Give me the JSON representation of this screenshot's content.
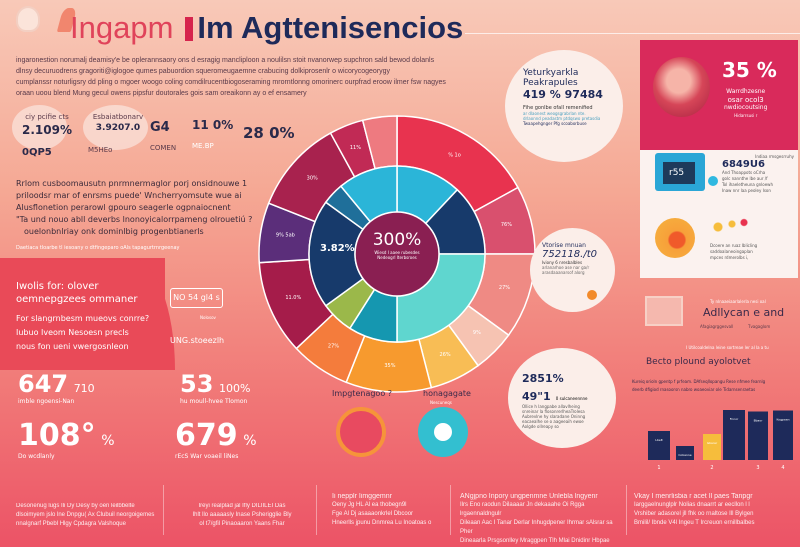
{
  "header": {
    "title_light": "Ingapm",
    "title_bold": "Im Agttenisencios"
  },
  "intro": {
    "lines": [
      "ingaronestion norumalj deamisy'e be oplerannsaory ons d esragig mancliploon a noulilsn stoit nvanorwep supchron sald bewod dolanls",
      "dlnsy decuruodrens gragoriti@iglogoe qumes pabuordion squeromeugaemne crabucing dolkiprosenlr o wicorycogeorygy",
      "cumplanssr noturligsry dd pling o mgoer woogo coling comdilrucentbiogoseraming mrorntlonng omorinerc ourpfrad eroow ilmer fsw nagyes",
      "oraan uoou blend Mung gecul owens pipsfur doutorales gois sam oreaikonn ay o ef ensamery"
    ]
  },
  "stats_top": [
    {
      "caption": "ciy pcifie cts",
      "value": "2.109%",
      "sub": "0QP5"
    },
    {
      "caption": "Esbaiatbonarv",
      "value": "3.9207.0",
      "sub": "M5HEo"
    },
    {
      "caption": "",
      "value": "G4",
      "sub": "COMEN"
    },
    {
      "caption": "",
      "value": "11 0%",
      "sub": "ME.BP"
    },
    {
      "caption": "",
      "value": "28 0%",
      "sub": ""
    }
  ],
  "paragraph": {
    "lines": [
      "Rrlom cusboomausutn pnrmnermaglor porj onsidnouwe 1",
      "priloodsr mar of enrsms puede' Wncherryomsute wue ai",
      "Alusflonetion perarowl gpouro seagerle ogpnaiocnent",
      "\"Ta und nouo abll deverbs lnonoyicalorrpameng olrouetiú ?",
      "ouelonbnlriay onk dominlbig progenbtianerls"
    ],
    "footnote": "Daetiaca tloarbe tl iesoany o dtfingeparo oAls tapagurtrnrgeenay"
  },
  "band": {
    "title1": "Iwolis for: olover",
    "title2": "oemnepgzees ommaner",
    "body": [
      "For slangrnbesm mueovs conrre?",
      "Iubuo Iveom Nesoesn precls",
      "nous fon ueni vwergosnleon"
    ],
    "box": "NO 54 gl4 s",
    "box_caption": "Nolosov",
    "label": "UNG.stoeezlh"
  },
  "big_stats": [
    {
      "value": "647",
      "unit": "710",
      "caption": "imble ngoensi-Nan"
    },
    {
      "value": "53",
      "unit": "100%",
      "caption": "hu moull-hvee Tlomon"
    },
    {
      "value": "108°",
      "unit": "%",
      "caption": "Do wcdlanly"
    },
    {
      "value": "679",
      "unit": "%",
      "caption": "rEcS War voaeil liNes"
    }
  ],
  "donut": {
    "center_value": "300%",
    "center_text": [
      "Wiesd I aaee rubesdes",
      "Nedeogrl Iterbsroes"
    ],
    "left_label": "3.82%",
    "outer": [
      {
        "value": 17,
        "color": "#e8334f",
        "label": "% 1o"
      },
      {
        "value": 8,
        "color": "#d9506e",
        "label": "76%"
      },
      {
        "value": 10,
        "color": "#ef8a84",
        "label": "27%"
      },
      {
        "value": 5,
        "color": "#f6c3b2",
        "label": "9%"
      },
      {
        "value": 6,
        "color": "#f8bd55",
        "label": "26%"
      },
      {
        "value": 10,
        "color": "#f79a2e",
        "label": "35%"
      },
      {
        "value": 7,
        "color": "#f47c3c",
        "label": "27%"
      },
      {
        "value": 11,
        "color": "#a51c4a",
        "label": "11.0%"
      },
      {
        "value": 7,
        "color": "#5b2e7a",
        "label": "9% 5ab"
      },
      {
        "value": 11,
        "color": "#a8224e",
        "label": "30%"
      },
      {
        "value": 4,
        "color": "#c12a55",
        "label": "11%"
      },
      {
        "value": 4,
        "color": "#ee7a80",
        "label": ""
      }
    ],
    "inner": [
      {
        "value": 12,
        "color": "#2bb5d8"
      },
      {
        "value": 13,
        "color": "#173a6b"
      },
      {
        "value": 25,
        "color": "#5fd6cf"
      },
      {
        "value": 9,
        "color": "#1597b0"
      },
      {
        "value": 6,
        "color": "#9bb84a"
      },
      {
        "value": 20,
        "color": "#173a6b"
      },
      {
        "value": 4,
        "color": "#1f6f9a"
      },
      {
        "value": 11,
        "color": "#2bb5d8"
      }
    ],
    "core_color": "#8a1f52"
  },
  "below_donut": {
    "left_label": "Impgtenagoo ?",
    "right_label": "honagagate",
    "right_sub": "Nescuneqs"
  },
  "bubble1": {
    "line1": "Yeturkyarkla",
    "line2": "Peakrapules",
    "value": "419 % 97484",
    "sub": "Fihe gonlbe ofall remenified",
    "lines": [
      "ar dlaonest weogsgrabrlan nte.",
      "drlaonnd peadastm ptdqswo pretasdia",
      "Twaapehgnger Pfg scoaborbuse"
    ]
  },
  "bubble2": {
    "line1": "Vtorise mnuan",
    "value": "752118./t0",
    "sub": "Iviony 6 nresbalbles",
    "lines": [
      "arlanarhoe ase nar ga/r",
      "arasdaaanarsof alorg"
    ]
  },
  "bubble3": {
    "value1": "2851%",
    "value2": "49\"1",
    "sub": "0 sulcaneennne",
    "lines": [
      "Ollice h langpabe allavlheing",
      "snreinar la flosonrerlheaTrolesa",
      "Aubrevlne hy slaradane Oninng",
      "eacaealhe se o aageeaih ewoe",
      "Aolgde ollreapy so"
    ]
  },
  "panel": {
    "percent": "35 %",
    "top_lines": [
      "Warrdhzesne",
      "osar ocol3",
      "nwdiocoutsing",
      "Hidarrsusi r"
    ],
    "mid_caption": "Indiaa rmsgesrruhy",
    "mid_value": "6849U6",
    "mid_lines": [
      "And Thoappots oCrha",
      "golc nannthe lbe aur /f",
      "Tol ihaeletheuna gnloewh",
      "Inaw nnr laa peoley Ison"
    ],
    "tag": "r55",
    "bottom_lines": [
      "Dcoere an ruaz Iblicling",
      "saddoalaneoingaplan",
      "mpces rdmerolbs i,"
    ]
  },
  "lower_right": {
    "caption": "Ty nlnaaeiaarlalerla nesi oal",
    "title": "Adllycan e and",
    "sub_left": "Afagiagrggesvall",
    "sub_right": "Tvagaglom",
    "note": "I Utilcoaldelna leine sortreae ler al la a tu",
    "chart_title": "Becto plound ayolotvet",
    "chart_desc": [
      "Kureiq orioln gpentp f prfeam. DAfseqllopangu Rese nfmee fearnlg",
      "deerb dfigiod rnasoorsn nabro woaeoviar ole Tidarnsenraetas"
    ],
    "bar_labels": [
      "Lbelt",
      "Cobanne",
      "Gbarer",
      "Fnnor",
      "Bbaor",
      "Kogpaan"
    ]
  },
  "chart_data": {
    "type": "bar",
    "categories": [
      "1",
      "",
      "2",
      "",
      "3",
      "4"
    ],
    "values": [
      58,
      28,
      52,
      100,
      97,
      99
    ],
    "colors": [
      "#1e2a5a",
      "#1e2a5a",
      "#f6bd3c",
      "#1e2a5a",
      "#1e2a5a",
      "#1e2a5a"
    ]
  },
  "footer": [
    {
      "title": "",
      "lines": [
        "Desonenug lugs Ili Dy Desy by oen leilbbelte",
        "dlsoimyem jslo lne Dnpgu( Ax Clubuil neorgoigemes",
        "nnalgnarf Pbebl Hlgy Cpdagra Valshoque"
      ]
    },
    {
      "title": "",
      "lines": [
        "Ireyi realplad jal Ifly DILIILEI Das",
        "Ihlt llo aaaaasly Inase Psherigglie Bly",
        "ol t7/gfil Pinaoaaron Yaans Fhar"
      ]
    },
    {
      "title": "Ii nepplr Iimggemnr",
      "lines": [
        "Oeny Jg HL Al ea thobegn9l",
        "Fge Al Dj asaaaonkrlel Dbcoor",
        "Hneerlls jpunu Dnmrea Lu Inoatoas o"
      ]
    },
    {
      "title": "ANgjpno Inpory ungpenmne Unlebla lngyenr",
      "lines": [
        "Ilrs Eno raodun Dilaaaar Jn dekaaahe Oi Rgga lrgaennaldngulr",
        "Dileaan Aac I Tanar Derlar Inhugdpener Ihrmar sAlsrar sa Pher",
        "Dineaarla Prsgsonlley Mraggpen Tlh Mlai Dnidinr Hbpae"
      ]
    },
    {
      "title": "Vkay I menrlisbia r acet Il paes Tanpgr",
      "lines": [
        "Iarggaelnunglplr Nolias dnaarrt ar eecllon l l",
        "Vrshiber adasorel jll fhk oo rnaltose Ill Bylgen",
        "Bmilil/ Ibnde V4l Ingeu T Ircreuon ernillbalbes"
      ]
    }
  ]
}
